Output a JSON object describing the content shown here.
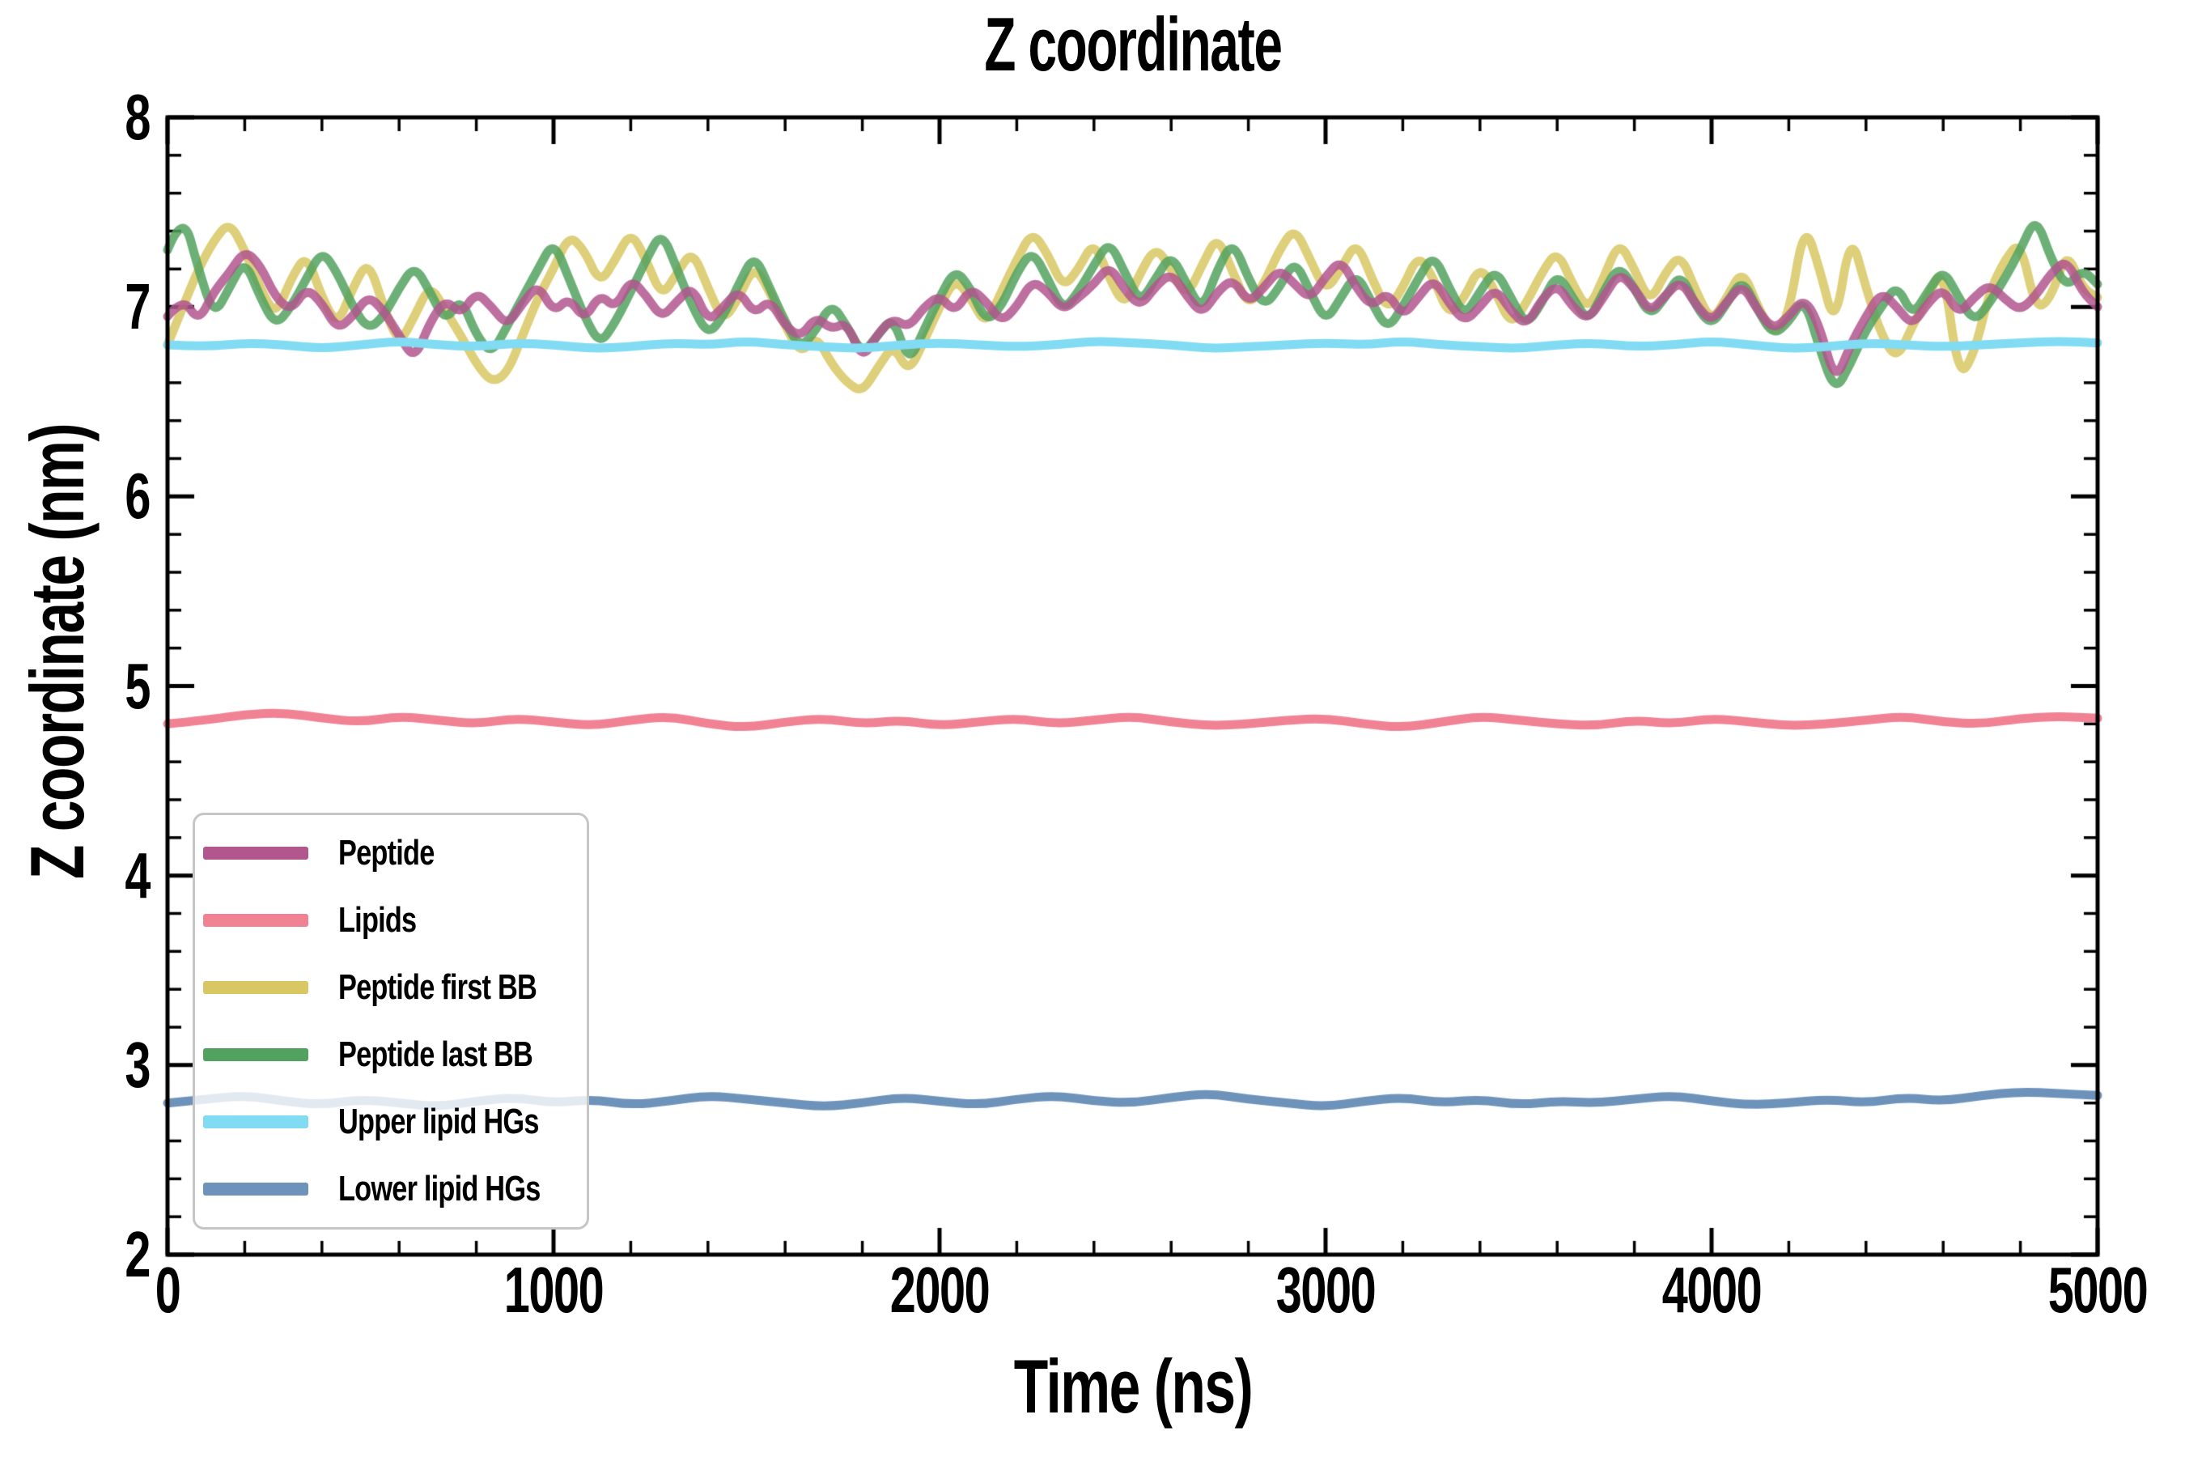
{
  "chart_data": {
    "type": "line",
    "title": "Z coordinate",
    "xlabel": "Time (ns)",
    "ylabel": "Z coordinate (nm)",
    "xlim": [
      0,
      5000
    ],
    "ylim": [
      2,
      8
    ],
    "x_major_ticks": [
      0,
      1000,
      2000,
      3000,
      4000,
      5000
    ],
    "x_minor_step": 200,
    "y_major_ticks": [
      8,
      7,
      6,
      5,
      4,
      3,
      2
    ],
    "y_minor_step": 0.2,
    "grid": false,
    "legend_position": "lower left",
    "axis_color": "#000000",
    "series": [
      {
        "name": "Peptide",
        "color": "#b2568e",
        "opacity": 0.85,
        "linewidth": 11,
        "x_start": 0,
        "x_step": 40,
        "values": [
          6.95,
          7.05,
          6.92,
          7.08,
          7.18,
          7.3,
          7.22,
          7.05,
          6.98,
          7.1,
          7.02,
          6.88,
          6.95,
          7.06,
          6.98,
          6.85,
          6.72,
          6.92,
          7.04,
          6.96,
          7.08,
          7.0,
          6.9,
          7.02,
          7.12,
          6.97,
          7.05,
          6.93,
          7.07,
          6.99,
          7.15,
          7.06,
          6.94,
          7.03,
          7.11,
          6.92,
          7.0,
          7.09,
          6.96,
          7.04,
          6.9,
          6.84,
          6.95,
          6.88,
          6.92,
          6.72,
          6.86,
          6.94,
          6.89,
          7.0,
          7.06,
          6.97,
          7.1,
          7.03,
          6.92,
          7.0,
          7.14,
          7.08,
          6.98,
          7.05,
          7.12,
          7.22,
          7.09,
          7.0,
          7.11,
          7.18,
          7.06,
          6.96,
          7.08,
          7.15,
          7.02,
          7.1,
          7.2,
          7.12,
          7.04,
          7.16,
          7.25,
          7.1,
          7.0,
          7.08,
          6.95,
          7.05,
          7.15,
          7.02,
          6.92,
          7.0,
          7.1,
          6.98,
          6.9,
          7.04,
          7.12,
          7.0,
          6.93,
          7.05,
          7.18,
          7.1,
          6.97,
          7.06,
          7.14,
          7.01,
          6.92,
          7.03,
          7.12,
          6.98,
          6.88,
          6.95,
          7.05,
          6.9,
          6.6,
          6.8,
          6.95,
          7.08,
          7.0,
          6.9,
          7.02,
          7.1,
          6.96,
          7.05,
          7.12,
          7.04,
          6.98,
          7.06,
          7.18,
          7.25,
          7.08,
          7.0
        ]
      },
      {
        "name": "Lipids",
        "color": "#f08294",
        "opacity": 1.0,
        "linewidth": 11,
        "x_start": 0,
        "x_step": 100,
        "values": [
          4.8,
          4.82,
          4.85,
          4.86,
          4.83,
          4.81,
          4.84,
          4.82,
          4.8,
          4.83,
          4.81,
          4.79,
          4.82,
          4.84,
          4.8,
          4.78,
          4.81,
          4.83,
          4.8,
          4.82,
          4.79,
          4.81,
          4.83,
          4.8,
          4.82,
          4.84,
          4.81,
          4.79,
          4.8,
          4.82,
          4.83,
          4.8,
          4.78,
          4.81,
          4.84,
          4.82,
          4.8,
          4.79,
          4.82,
          4.8,
          4.83,
          4.81,
          4.79,
          4.8,
          4.82,
          4.84,
          4.81,
          4.8,
          4.83,
          4.84,
          4.83
        ]
      },
      {
        "name": "Peptide first BB",
        "color": "#d8c763",
        "opacity": 0.85,
        "linewidth": 11,
        "x_start": 0,
        "x_step": 40,
        "values": [
          6.8,
          7.0,
          7.2,
          7.35,
          7.45,
          7.3,
          7.1,
          6.95,
          7.15,
          7.28,
          7.05,
          6.9,
          7.1,
          7.25,
          7.0,
          6.8,
          6.95,
          7.12,
          6.98,
          6.85,
          6.7,
          6.6,
          6.65,
          6.85,
          7.05,
          7.2,
          7.38,
          7.3,
          7.12,
          7.25,
          7.4,
          7.25,
          7.05,
          7.18,
          7.3,
          7.1,
          6.92,
          7.05,
          7.22,
          7.08,
          6.9,
          6.75,
          6.85,
          6.7,
          6.6,
          6.55,
          6.68,
          6.8,
          6.65,
          6.82,
          7.0,
          7.15,
          7.05,
          6.9,
          7.08,
          7.25,
          7.4,
          7.28,
          7.1,
          7.2,
          7.35,
          7.15,
          7.0,
          7.18,
          7.32,
          7.2,
          7.05,
          7.22,
          7.38,
          7.18,
          7.0,
          7.12,
          7.3,
          7.42,
          7.25,
          7.08,
          7.2,
          7.35,
          7.15,
          6.98,
          7.1,
          7.28,
          7.15,
          6.95,
          7.05,
          7.22,
          7.08,
          6.9,
          7.02,
          7.18,
          7.3,
          7.12,
          6.98,
          7.15,
          7.35,
          7.2,
          7.02,
          7.18,
          7.28,
          7.08,
          6.92,
          7.05,
          7.2,
          7.0,
          6.85,
          6.95,
          7.45,
          7.2,
          6.88,
          7.4,
          7.1,
          6.85,
          6.72,
          6.9,
          7.05,
          7.22,
          6.62,
          6.75,
          7.08,
          7.25,
          7.35,
          6.98,
          7.05,
          7.3,
          7.1,
          7.05
        ]
      },
      {
        "name": "Peptide last BB",
        "color": "#52a25f",
        "opacity": 0.85,
        "linewidth": 11,
        "x_start": 0,
        "x_step": 40,
        "values": [
          7.3,
          7.5,
          7.2,
          6.95,
          7.1,
          7.25,
          7.05,
          6.9,
          7.0,
          7.15,
          7.3,
          7.18,
          7.0,
          6.88,
          6.95,
          7.1,
          7.22,
          7.08,
          6.92,
          7.05,
          6.85,
          6.75,
          6.9,
          7.05,
          7.2,
          7.35,
          7.15,
          6.95,
          6.8,
          6.92,
          7.08,
          7.25,
          7.4,
          7.2,
          7.0,
          6.85,
          6.95,
          7.12,
          7.28,
          7.1,
          6.92,
          6.78,
          6.88,
          7.02,
          6.9,
          6.75,
          6.85,
          6.95,
          6.7,
          6.88,
          7.05,
          7.2,
          7.1,
          6.92,
          7.0,
          7.18,
          7.3,
          7.15,
          6.98,
          7.08,
          7.22,
          7.35,
          7.18,
          7.02,
          7.15,
          7.28,
          7.12,
          6.98,
          7.2,
          7.35,
          7.15,
          7.0,
          7.1,
          7.25,
          7.08,
          6.92,
          7.05,
          7.18,
          7.02,
          6.88,
          7.0,
          7.15,
          7.28,
          7.1,
          6.95,
          7.08,
          7.2,
          7.05,
          6.9,
          7.02,
          7.18,
          7.05,
          6.92,
          7.08,
          7.22,
          7.1,
          6.95,
          7.05,
          7.18,
          7.0,
          6.9,
          7.02,
          7.15,
          6.98,
          6.85,
          6.92,
          7.05,
          6.78,
          6.55,
          6.7,
          6.88,
          7.0,
          7.12,
          6.95,
          7.08,
          7.2,
          7.05,
          6.92,
          7.02,
          7.15,
          7.3,
          7.48,
          7.25,
          7.1,
          7.2,
          7.12
        ]
      },
      {
        "name": "Upper lipid HGs",
        "color": "#81dbf2",
        "opacity": 1.0,
        "linewidth": 11,
        "x_start": 0,
        "x_step": 100,
        "values": [
          6.8,
          6.79,
          6.81,
          6.8,
          6.78,
          6.8,
          6.82,
          6.8,
          6.79,
          6.81,
          6.8,
          6.78,
          6.79,
          6.81,
          6.8,
          6.82,
          6.8,
          6.79,
          6.78,
          6.8,
          6.81,
          6.8,
          6.79,
          6.8,
          6.82,
          6.81,
          6.8,
          6.78,
          6.79,
          6.8,
          6.81,
          6.8,
          6.82,
          6.8,
          6.79,
          6.78,
          6.8,
          6.81,
          6.79,
          6.8,
          6.82,
          6.8,
          6.78,
          6.79,
          6.81,
          6.8,
          6.79,
          6.8,
          6.81,
          6.82,
          6.81
        ]
      },
      {
        "name": "Lower lipid HGs",
        "color": "#6e93bb",
        "opacity": 1.0,
        "linewidth": 11,
        "x_start": 0,
        "x_step": 100,
        "values": [
          2.8,
          2.82,
          2.84,
          2.81,
          2.79,
          2.82,
          2.8,
          2.78,
          2.81,
          2.83,
          2.8,
          2.82,
          2.79,
          2.81,
          2.84,
          2.82,
          2.8,
          2.78,
          2.8,
          2.83,
          2.81,
          2.79,
          2.82,
          2.84,
          2.81,
          2.8,
          2.83,
          2.85,
          2.82,
          2.8,
          2.78,
          2.81,
          2.83,
          2.8,
          2.82,
          2.79,
          2.81,
          2.8,
          2.82,
          2.84,
          2.81,
          2.79,
          2.8,
          2.82,
          2.8,
          2.83,
          2.81,
          2.84,
          2.86,
          2.85,
          2.84
        ]
      }
    ]
  }
}
